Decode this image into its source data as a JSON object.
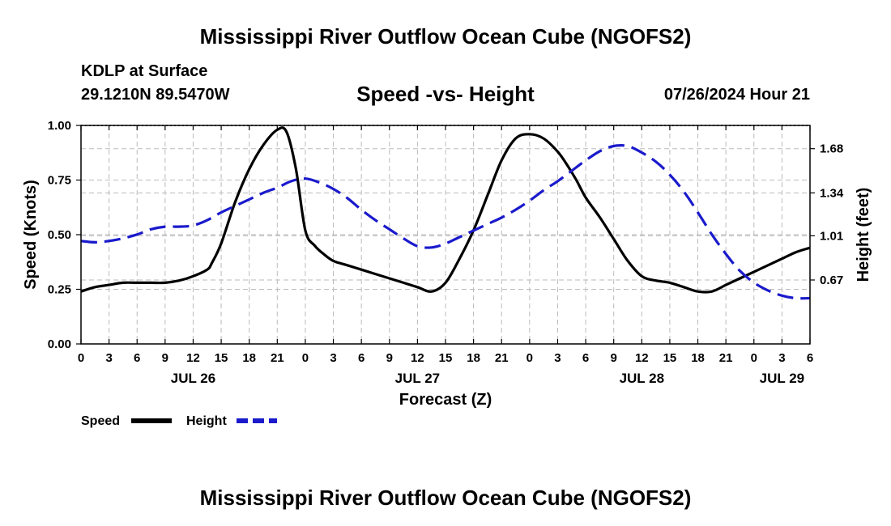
{
  "header": {
    "title": "Mississippi River Outflow Ocean Cube (NGOFS2)",
    "station": "KDLP at Surface",
    "coords": "29.1210N  89.5470W",
    "subtitle": "Speed -vs- Height",
    "datetime": "07/26/2024 Hour 21"
  },
  "footer": {
    "title": "Mississippi River Outflow Ocean Cube (NGOFS2)"
  },
  "colors": {
    "speed": "#000000",
    "height": "#1a1acc",
    "grid": "#bbbbbb"
  },
  "chart_data": {
    "type": "line",
    "title": "Speed -vs- Height",
    "xlabel": "Forecast (Z)",
    "ylabel": "Speed (Knots)",
    "ylabel_right": "Height (feet)",
    "xlim": [
      0,
      78
    ],
    "ylim": [
      0,
      1.0
    ],
    "ylim_right": [
      0.1783,
      1.8588
    ],
    "x_tick_values": [
      0,
      3,
      6,
      9,
      12,
      15,
      18,
      21,
      24,
      27,
      30,
      33,
      36,
      39,
      42,
      45,
      48,
      51,
      54,
      57,
      60,
      63,
      66,
      69,
      72,
      75,
      78
    ],
    "x_tick_labels": [
      "0",
      "3",
      "6",
      "9",
      "12",
      "15",
      "18",
      "21",
      "0",
      "3",
      "6",
      "9",
      "12",
      "15",
      "18",
      "21",
      "0",
      "3",
      "6",
      "9",
      "12",
      "15",
      "18",
      "21",
      "0",
      "3",
      "6"
    ],
    "day_labels": [
      {
        "x": 12,
        "text": "JUL 26"
      },
      {
        "x": 36,
        "text": "JUL 27"
      },
      {
        "x": 60,
        "text": "JUL 28"
      },
      {
        "x": 75,
        "text": "JUL 29"
      }
    ],
    "y_ticks": [
      {
        "value": 0.0,
        "label": "0.00"
      },
      {
        "value": 0.25,
        "label": "0.25"
      },
      {
        "value": 0.5,
        "label": "0.50"
      },
      {
        "value": 0.75,
        "label": "0.75"
      },
      {
        "value": 1.0,
        "label": "1.00"
      }
    ],
    "y_ticks_right": [
      {
        "value": 0.67,
        "label": "0.67"
      },
      {
        "value": 1.01,
        "label": "1.01"
      },
      {
        "value": 1.34,
        "label": "1.34"
      },
      {
        "value": 1.68,
        "label": "1.68"
      }
    ],
    "grid": true,
    "legend": [
      {
        "name": "Speed",
        "style": "solid"
      },
      {
        "name": "Height",
        "style": "dashed"
      }
    ],
    "series": [
      {
        "name": "Speed",
        "axis": "left",
        "x": [
          0,
          1.5,
          3,
          4.5,
          6,
          7.5,
          9,
          10.5,
          12,
          13.5,
          14,
          15,
          16.5,
          18,
          19.5,
          21,
          22,
          23,
          24,
          25,
          26,
          27,
          28.5,
          30,
          31.5,
          33,
          34.5,
          36,
          37.5,
          39,
          40.5,
          42,
          43.5,
          45,
          46.5,
          48,
          49.5,
          51,
          52,
          53,
          54,
          55.5,
          57,
          58.5,
          60,
          61.5,
          63,
          64.5,
          66,
          67.5,
          69,
          70.5,
          72,
          73.5,
          75,
          76.5,
          78
        ],
        "y": [
          0.24,
          0.26,
          0.27,
          0.28,
          0.28,
          0.28,
          0.28,
          0.29,
          0.31,
          0.34,
          0.37,
          0.46,
          0.65,
          0.8,
          0.91,
          0.98,
          0.97,
          0.8,
          0.52,
          0.45,
          0.41,
          0.38,
          0.36,
          0.34,
          0.32,
          0.3,
          0.28,
          0.26,
          0.24,
          0.28,
          0.39,
          0.52,
          0.68,
          0.84,
          0.94,
          0.96,
          0.94,
          0.88,
          0.82,
          0.75,
          0.67,
          0.58,
          0.48,
          0.38,
          0.31,
          0.29,
          0.28,
          0.26,
          0.24,
          0.24,
          0.27,
          0.3,
          0.33,
          0.36,
          0.39,
          0.42,
          0.44
        ]
      },
      {
        "name": "Height",
        "axis": "right",
        "x": [
          0,
          1.5,
          3,
          4.5,
          6,
          7.5,
          9,
          10.5,
          12,
          13.5,
          15,
          16.5,
          18,
          19.5,
          21,
          22.5,
          24,
          25.5,
          27,
          28.5,
          30,
          31.5,
          33,
          34.5,
          36,
          37.5,
          39,
          40.5,
          42,
          43.5,
          45,
          46.5,
          48,
          49.5,
          51,
          52.5,
          54,
          55.5,
          57,
          58.5,
          60,
          61.5,
          63,
          64.5,
          66,
          67.5,
          69,
          70.5,
          72,
          73.5,
          75,
          76.5,
          78
        ],
        "y": [
          0.97,
          0.96,
          0.97,
          0.99,
          1.02,
          1.06,
          1.08,
          1.08,
          1.09,
          1.13,
          1.19,
          1.24,
          1.29,
          1.34,
          1.38,
          1.43,
          1.45,
          1.42,
          1.37,
          1.3,
          1.21,
          1.13,
          1.06,
          0.99,
          0.93,
          0.92,
          0.95,
          1.0,
          1.05,
          1.1,
          1.15,
          1.21,
          1.28,
          1.36,
          1.43,
          1.51,
          1.59,
          1.66,
          1.7,
          1.7,
          1.65,
          1.58,
          1.48,
          1.35,
          1.19,
          1.02,
          0.87,
          0.74,
          0.65,
          0.59,
          0.55,
          0.53,
          0.53
        ]
      }
    ]
  }
}
